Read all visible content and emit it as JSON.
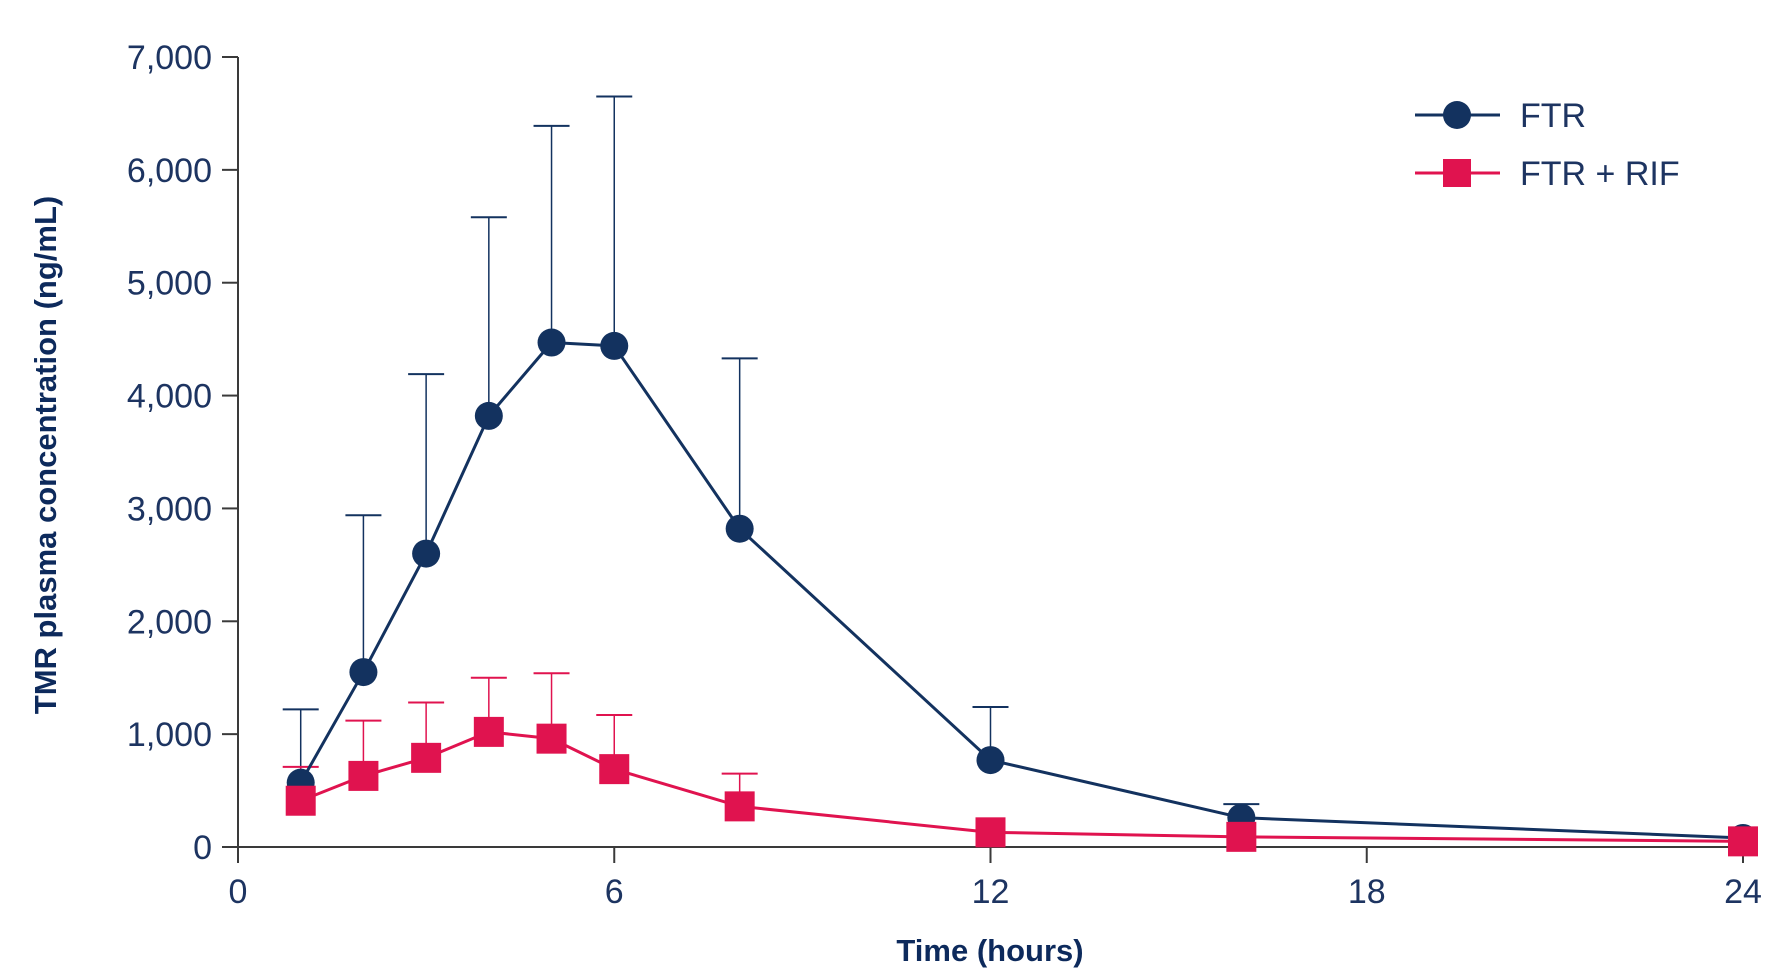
{
  "chart_data": {
    "type": "line",
    "title": "",
    "xlabel": "Time (hours)",
    "ylabel": "TMR plasma concentration (ng/mL)",
    "xlim": [
      0,
      24
    ],
    "ylim": [
      0,
      7000
    ],
    "x_ticks": [
      0,
      6,
      12,
      18,
      24
    ],
    "x_tick_labels": [
      "0",
      "6",
      "12",
      "18",
      "24"
    ],
    "y_ticks": [
      0,
      1000,
      2000,
      3000,
      4000,
      5000,
      6000,
      7000
    ],
    "y_tick_labels": [
      "0",
      "1,000",
      "2,000",
      "3,000",
      "4,000",
      "5,000",
      "6,000",
      "7,000"
    ],
    "grid": false,
    "legend_position": "top-right",
    "series": [
      {
        "name": "FTR",
        "color": "#13325f",
        "marker": "circle",
        "x": [
          1,
          2,
          3,
          4,
          5,
          6,
          8,
          12,
          16,
          24
        ],
        "y": [
          570,
          1550,
          2600,
          3820,
          4470,
          4440,
          2820,
          770,
          260,
          80
        ],
        "error_upper": [
          1220,
          2940,
          4190,
          5580,
          6390,
          6650,
          4330,
          1240,
          380,
          null
        ]
      },
      {
        "name": "FTR + RIF",
        "color": "#e0134f",
        "marker": "square",
        "x": [
          1,
          2,
          3,
          4,
          5,
          6,
          8,
          12,
          16,
          24
        ],
        "y": [
          410,
          630,
          790,
          1020,
          960,
          690,
          360,
          130,
          90,
          50
        ],
        "error_upper": [
          710,
          1120,
          1280,
          1500,
          1540,
          1170,
          650,
          null,
          null,
          null
        ]
      }
    ]
  }
}
